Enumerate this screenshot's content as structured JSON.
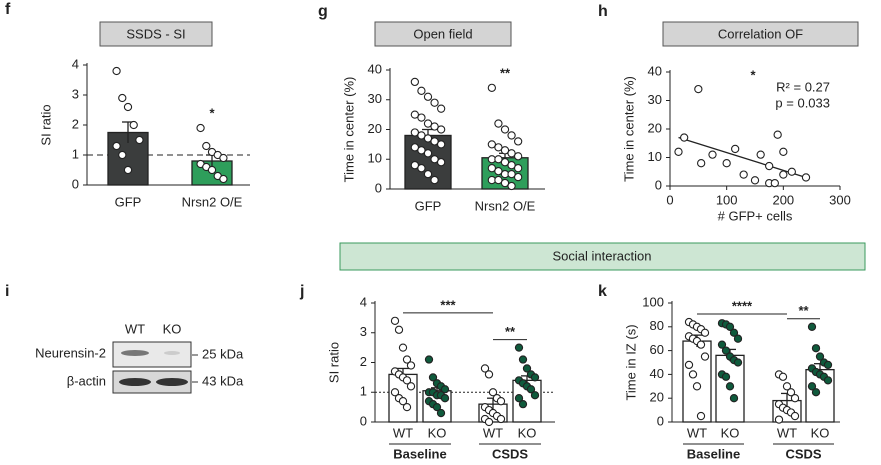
{
  "chart_data": [
    {
      "type": "bar",
      "letter": "f",
      "title": "SSDS - SI",
      "ylabel": "SI ratio",
      "categories": [
        "GFP",
        "Nrsn2 O/E"
      ],
      "values": [
        1.75,
        0.8
      ],
      "errors": [
        0.35,
        0.2
      ],
      "bar_colors": [
        "#3b3d3d",
        "#2e9e5b"
      ],
      "point_colors": [
        "#ffffff",
        "#ffffff"
      ],
      "points": [
        [
          3.8,
          2.9,
          2.6,
          2.0,
          1.5,
          1.3,
          1.0,
          0.5
        ],
        [
          1.9,
          1.3,
          1.1,
          1.0,
          0.9,
          0.7,
          0.6,
          0.5,
          0.3,
          0.2
        ]
      ],
      "refline": 1,
      "refline_style": "dashed",
      "ylim": [
        0,
        4
      ],
      "yticks": [
        0,
        1,
        2,
        3,
        4
      ],
      "significance": [
        {
          "label": "*",
          "between": [
            1,
            1
          ]
        }
      ]
    },
    {
      "type": "bar",
      "letter": "g",
      "title": "Open field",
      "ylabel": "Time in center (%)",
      "categories": [
        "GFP",
        "Nrsn2 O/E"
      ],
      "values": [
        18,
        10.5
      ],
      "errors": [
        2,
        1.5
      ],
      "bar_colors": [
        "#3b3d3d",
        "#2e9e5b"
      ],
      "point_colors": [
        "#ffffff",
        "#ffffff"
      ],
      "points": [
        [
          36,
          33,
          31,
          29,
          27,
          25,
          24,
          22,
          21,
          20,
          19,
          18,
          17,
          16,
          15,
          14,
          13,
          12,
          10,
          9,
          8,
          7,
          5,
          3
        ],
        [
          34,
          22,
          20,
          18,
          16,
          15,
          14,
          13,
          12,
          11,
          10,
          10,
          9,
          8,
          7,
          7,
          6,
          5,
          5,
          4,
          3,
          3,
          2,
          1
        ]
      ],
      "ylim": [
        0,
        40
      ],
      "yticks": [
        0,
        10,
        20,
        30,
        40
      ],
      "significance": [
        {
          "label": "**",
          "between": [
            1,
            1
          ]
        }
      ]
    },
    {
      "type": "scatter",
      "letter": "h",
      "title": "Correlation OF",
      "xlabel": "# GFP+  cells",
      "ylabel": "Time in center (%)",
      "x": [
        15,
        25,
        50,
        55,
        75,
        100,
        115,
        130,
        150,
        160,
        175,
        175,
        185,
        190,
        200,
        200,
        215,
        240
      ],
      "y": [
        12,
        17,
        34,
        8,
        11,
        8,
        13,
        4,
        2,
        11,
        7,
        1,
        1,
        18,
        12,
        4,
        5,
        3
      ],
      "fit": {
        "x": [
          15,
          240
        ],
        "y": [
          17,
          3
        ]
      },
      "xlim": [
        0,
        300
      ],
      "xticks": [
        0,
        100,
        200,
        300
      ],
      "ylim": [
        0,
        40
      ],
      "yticks": [
        0,
        10,
        20,
        30,
        40
      ],
      "annotations": [
        "*",
        "R² = 0.27",
        "p = 0.033"
      ]
    },
    {
      "type": "bar",
      "letter": "j",
      "ylabel": "SI ratio",
      "categories": [
        "WT",
        "KO",
        "WT",
        "KO"
      ],
      "groups": [
        "Baseline",
        "CSDS"
      ],
      "values": [
        1.6,
        1.05,
        0.6,
        1.4
      ],
      "errors": [
        0.2,
        0.1,
        0.2,
        0.15
      ],
      "bar_colors": [
        "#ffffff",
        "#ffffff",
        "#ffffff",
        "#ffffff"
      ],
      "point_colors": [
        "#ffffff",
        "#0f5a3c",
        "#ffffff",
        "#0f5a3c"
      ],
      "points": [
        [
          3.4,
          3.1,
          2.5,
          2.1,
          1.9,
          1.7,
          1.6,
          1.5,
          1.4,
          1.2,
          1.0,
          0.8,
          0.7,
          0.5
        ],
        [
          2.1,
          1.5,
          1.3,
          1.2,
          1.1,
          1.0,
          1.0,
          0.9,
          0.9,
          0.8,
          0.7,
          0.6,
          0.5,
          0.3
        ],
        [
          1.8,
          1.6,
          1.0,
          0.8,
          0.7,
          0.5,
          0.4,
          0.3,
          0.2,
          0.1,
          0.1,
          0.0
        ],
        [
          2.5,
          2.1,
          1.8,
          1.6,
          1.5,
          1.4,
          1.3,
          1.2,
          1.1,
          0.9,
          0.8,
          0.6
        ]
      ],
      "refline": 1,
      "refline_style": "dotted",
      "ylim": [
        0,
        4
      ],
      "yticks": [
        0,
        1,
        2,
        3,
        4
      ],
      "significance": [
        {
          "label": "***",
          "between": [
            0,
            2
          ]
        },
        {
          "label": "**",
          "between": [
            2,
            3
          ]
        }
      ]
    },
    {
      "type": "bar",
      "letter": "k",
      "ylabel": "Time in IZ (s)",
      "categories": [
        "WT",
        "KO",
        "WT",
        "KO"
      ],
      "groups": [
        "Baseline",
        "CSDS"
      ],
      "values": [
        68,
        56,
        18,
        44
      ],
      "errors": [
        5,
        5,
        6,
        5
      ],
      "bar_colors": [
        "#ffffff",
        "#ffffff",
        "#ffffff",
        "#ffffff"
      ],
      "point_colors": [
        "#ffffff",
        "#0f5a3c",
        "#ffffff",
        "#0f5a3c"
      ],
      "points": [
        [
          84,
          82,
          80,
          78,
          75,
          72,
          70,
          68,
          65,
          55,
          48,
          40,
          30,
          5
        ],
        [
          83,
          82,
          80,
          75,
          70,
          65,
          60,
          55,
          52,
          50,
          40,
          38,
          30,
          20
        ],
        [
          40,
          38,
          30,
          25,
          20,
          15,
          12,
          10,
          8,
          5,
          2
        ],
        [
          80,
          62,
          55,
          50,
          48,
          45,
          42,
          40,
          38,
          35,
          30,
          25
        ]
      ],
      "ylim": [
        0,
        100
      ],
      "yticks": [
        0,
        20,
        40,
        60,
        80,
        100
      ],
      "significance": [
        {
          "label": "****",
          "between": [
            0,
            2
          ]
        },
        {
          "label": "**",
          "between": [
            2,
            3
          ]
        }
      ]
    }
  ],
  "banner": "Social interaction",
  "blot": {
    "letter": "i",
    "columns": [
      "WT",
      "KO"
    ],
    "rows": [
      {
        "label": "Neurensin-2",
        "size": "25 kDa"
      },
      {
        "label": "β-actin",
        "size": "43 kDa"
      }
    ]
  }
}
